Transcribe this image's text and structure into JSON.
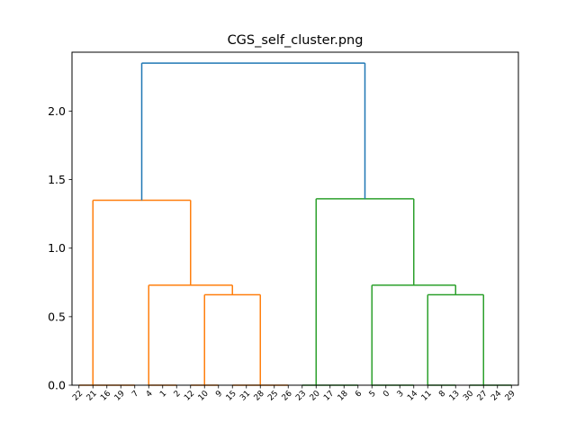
{
  "chart_data": {
    "type": "dendrogram",
    "title": "CGS_self_cluster.png",
    "xlabel": "",
    "ylabel": "",
    "ylim": [
      0,
      2.43
    ],
    "y_ticks": [
      0.0,
      0.5,
      1.0,
      1.5,
      2.0
    ],
    "y_tick_labels": [
      "0.0",
      "0.5",
      "1.0",
      "1.5",
      "2.0"
    ],
    "leaves": [
      "22",
      "21",
      "16",
      "19",
      "7",
      "4",
      "1",
      "2",
      "12",
      "10",
      "9",
      "15",
      "31",
      "28",
      "25",
      "26",
      "23",
      "20",
      "17",
      "18",
      "6",
      "5",
      "0",
      "3",
      "14",
      "11",
      "8",
      "13",
      "30",
      "27",
      "24",
      "29"
    ],
    "merges": [
      {
        "x": [
          0,
          1,
          2,
          3,
          4
        ],
        "height": 0.0,
        "color": "#ff7f0e"
      },
      {
        "x": [
          5,
          6,
          7
        ],
        "height": 0.0,
        "color": "#ff7f0e"
      },
      {
        "x": [
          8,
          9,
          10
        ],
        "height": 0.0,
        "color": "#ff7f0e"
      },
      {
        "x": [
          11,
          12,
          13,
          14,
          15
        ],
        "height": 0.0,
        "color": "#ff7f0e"
      },
      {
        "x": [
          16,
          17,
          18,
          19,
          20
        ],
        "height": 0.0,
        "color": "#2ca02c"
      },
      {
        "x": [
          21,
          22,
          23,
          24
        ],
        "height": 0.0,
        "color": "#2ca02c"
      },
      {
        "x": [
          25,
          26,
          27
        ],
        "height": 0.0,
        "color": "#2ca02c"
      },
      {
        "x": [
          28,
          29,
          30,
          31
        ],
        "height": 0.0,
        "color": "#2ca02c"
      },
      {
        "segments": [
          [
            9.0,
            0.0,
            9.0,
            0.66
          ],
          [
            9.0,
            0.66,
            13.0,
            0.66
          ],
          [
            13.0,
            0.66,
            13.0,
            0.0
          ]
        ],
        "color": "#ff7f0e"
      },
      {
        "segments": [
          [
            5.0,
            0.0,
            5.0,
            0.73
          ],
          [
            5.0,
            0.73,
            11.0,
            0.73
          ],
          [
            11.0,
            0.73,
            11.0,
            0.66
          ]
        ],
        "color": "#ff7f0e"
      },
      {
        "segments": [
          [
            1.0,
            0.0,
            1.0,
            1.35
          ],
          [
            1.0,
            1.35,
            8.0,
            1.35
          ],
          [
            8.0,
            1.35,
            8.0,
            0.73
          ]
        ],
        "color": "#ff7f0e"
      },
      {
        "segments": [
          [
            25.0,
            0.0,
            25.0,
            0.66
          ],
          [
            25.0,
            0.66,
            29.0,
            0.66
          ],
          [
            29.0,
            0.66,
            29.0,
            0.0
          ]
        ],
        "color": "#2ca02c"
      },
      {
        "segments": [
          [
            21.0,
            0.0,
            21.0,
            0.73
          ],
          [
            21.0,
            0.73,
            27.0,
            0.73
          ],
          [
            27.0,
            0.73,
            27.0,
            0.66
          ]
        ],
        "color": "#2ca02c"
      },
      {
        "segments": [
          [
            17.0,
            0.0,
            17.0,
            1.36
          ],
          [
            17.0,
            1.36,
            24.0,
            1.36
          ],
          [
            24.0,
            1.36,
            24.0,
            0.73
          ]
        ],
        "color": "#2ca02c"
      },
      {
        "segments": [
          [
            4.5,
            1.35,
            4.5,
            2.35
          ],
          [
            4.5,
            2.35,
            20.5,
            2.35
          ],
          [
            20.5,
            2.35,
            20.5,
            1.36
          ]
        ],
        "color": "#1f77b4"
      }
    ],
    "grid": false,
    "legend": "none",
    "colors": {
      "above_threshold": "#1f77b4",
      "cluster_1": "#ff7f0e",
      "cluster_2": "#2ca02c"
    }
  }
}
